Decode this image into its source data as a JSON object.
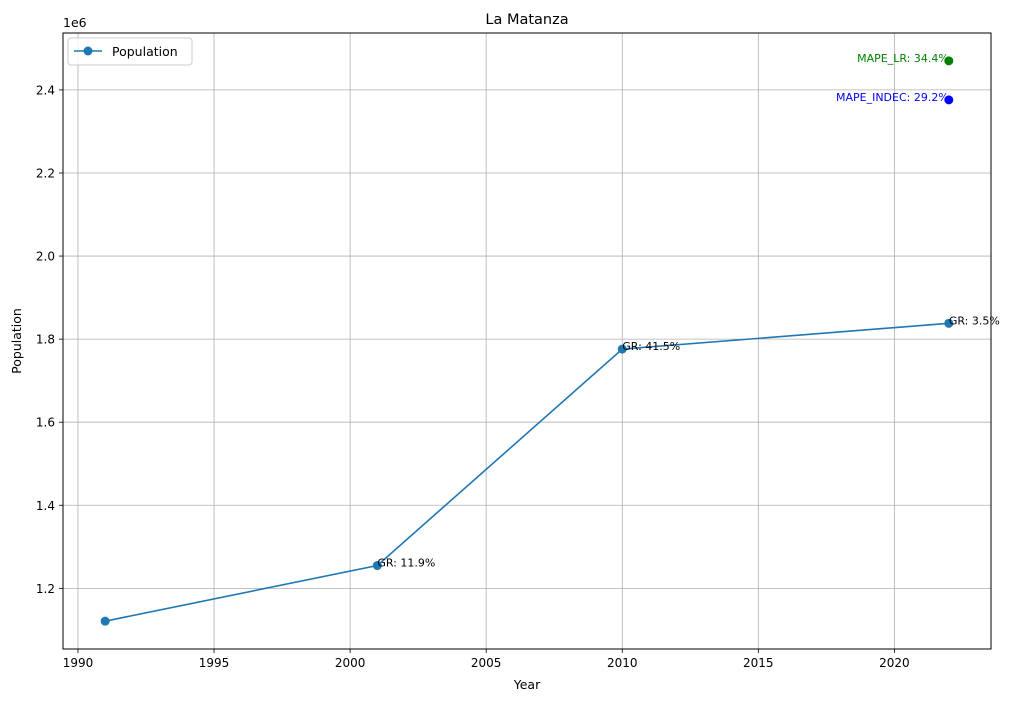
{
  "chart_data": {
    "type": "line",
    "title": "La Matanza",
    "xlabel": "Year",
    "ylabel": "Population",
    "y_offset_label": "1e6",
    "xlim": [
      1989.45,
      2023.55
    ],
    "ylim": [
      1054000,
      2537000
    ],
    "x_ticks": [
      1990,
      1995,
      2000,
      2005,
      2010,
      2015,
      2020
    ],
    "y_ticks": [
      1.2,
      1.4,
      1.6,
      1.8,
      2.0,
      2.2,
      2.4
    ],
    "y_tick_scale": 1000000,
    "grid": true,
    "legend": {
      "position": "top-left",
      "entries": [
        "Population"
      ]
    },
    "series": [
      {
        "name": "Population",
        "color": "#1f77b4",
        "x": [
          1991,
          2001,
          2010,
          2022
        ],
        "y": [
          1121000,
          1255000,
          1776000,
          1838000
        ]
      }
    ],
    "point_labels": [
      {
        "x": 2001,
        "y": 1255000,
        "text": "GR: 11.9%"
      },
      {
        "x": 2010,
        "y": 1776000,
        "text": "GR: 41.5%"
      },
      {
        "x": 2022,
        "y": 1838000,
        "text": "GR: 3.5%"
      }
    ],
    "extra_points": [
      {
        "x": 2022,
        "y": 2470000,
        "color": "#008000",
        "label": "MAPE_LR: 34.4%"
      },
      {
        "x": 2022,
        "y": 2376000,
        "color": "#0000ff",
        "label": "MAPE_INDEC: 29.2%"
      }
    ]
  }
}
